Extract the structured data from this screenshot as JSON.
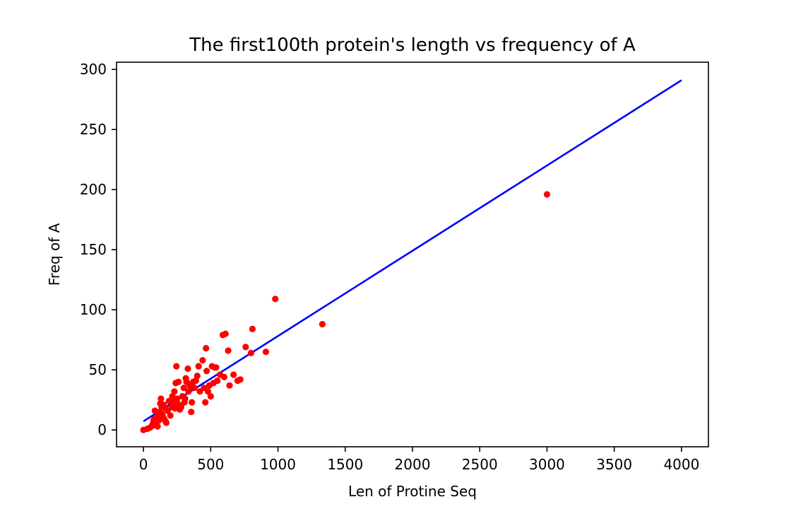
{
  "chart_data": {
    "type": "scatter",
    "title": "The first100th protein's length vs frequency of A",
    "xlabel": "Len of Protine Seq",
    "ylabel": "Freq of A",
    "xlim": [
      -200,
      4200
    ],
    "ylim": [
      -14,
      306
    ],
    "xticks": [
      0,
      500,
      1000,
      1500,
      2000,
      2500,
      3000,
      3500,
      4000
    ],
    "yticks": [
      0,
      50,
      100,
      150,
      200,
      250,
      300
    ],
    "grid": false,
    "colors": {
      "points": "#ff0000",
      "line": "#0000ff"
    },
    "series": [
      {
        "kind": "scatter",
        "points": [
          [
            0,
            0
          ],
          [
            30,
            1
          ],
          [
            50,
            2
          ],
          [
            60,
            3
          ],
          [
            70,
            5
          ],
          [
            75,
            8
          ],
          [
            80,
            9
          ],
          [
            85,
            16
          ],
          [
            90,
            4
          ],
          [
            95,
            6
          ],
          [
            100,
            10
          ],
          [
            105,
            3
          ],
          [
            110,
            12
          ],
          [
            115,
            8
          ],
          [
            120,
            15
          ],
          [
            125,
            22
          ],
          [
            130,
            26
          ],
          [
            135,
            19
          ],
          [
            140,
            13
          ],
          [
            145,
            11
          ],
          [
            150,
            21
          ],
          [
            155,
            9
          ],
          [
            160,
            18
          ],
          [
            165,
            7
          ],
          [
            170,
            6
          ],
          [
            180,
            16
          ],
          [
            190,
            24
          ],
          [
            200,
            12
          ],
          [
            210,
            19
          ],
          [
            215,
            28
          ],
          [
            220,
            25
          ],
          [
            225,
            20
          ],
          [
            230,
            32
          ],
          [
            235,
            18
          ],
          [
            240,
            39
          ],
          [
            245,
            53
          ],
          [
            250,
            26
          ],
          [
            255,
            22
          ],
          [
            260,
            40
          ],
          [
            270,
            17
          ],
          [
            275,
            20
          ],
          [
            280,
            19
          ],
          [
            290,
            28
          ],
          [
            300,
            35
          ],
          [
            305,
            23
          ],
          [
            310,
            26
          ],
          [
            315,
            43
          ],
          [
            320,
            40
          ],
          [
            330,
            51
          ],
          [
            335,
            32
          ],
          [
            340,
            38
          ],
          [
            350,
            36
          ],
          [
            355,
            15
          ],
          [
            360,
            23
          ],
          [
            370,
            40
          ],
          [
            380,
            35
          ],
          [
            390,
            41
          ],
          [
            400,
            45
          ],
          [
            410,
            53
          ],
          [
            420,
            32
          ],
          [
            440,
            58
          ],
          [
            450,
            35
          ],
          [
            460,
            23
          ],
          [
            465,
            68
          ],
          [
            470,
            49
          ],
          [
            480,
            32
          ],
          [
            490,
            37
          ],
          [
            500,
            28
          ],
          [
            510,
            53
          ],
          [
            520,
            39
          ],
          [
            530,
            52
          ],
          [
            540,
            52
          ],
          [
            550,
            41
          ],
          [
            570,
            46
          ],
          [
            590,
            79
          ],
          [
            600,
            44
          ],
          [
            610,
            80
          ],
          [
            630,
            66
          ],
          [
            640,
            37
          ],
          [
            670,
            46
          ],
          [
            700,
            41
          ],
          [
            720,
            42
          ],
          [
            760,
            69
          ],
          [
            800,
            64
          ],
          [
            810,
            84
          ],
          [
            910,
            65
          ],
          [
            980,
            109
          ],
          [
            1330,
            88
          ],
          [
            3000,
            196
          ]
        ]
      },
      {
        "kind": "line",
        "points": [
          [
            0,
            7.2
          ],
          [
            4000,
            291
          ]
        ]
      }
    ]
  }
}
